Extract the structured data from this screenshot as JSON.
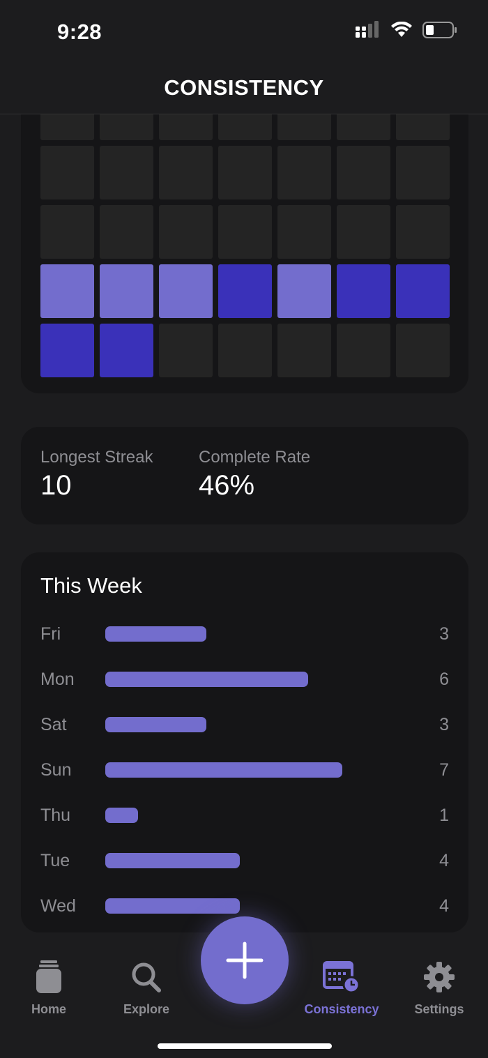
{
  "status_bar": {
    "time": "9:28"
  },
  "header": {
    "title": "CONSISTENCY"
  },
  "heatmap": {
    "colors": {
      "empty": "#242424",
      "light": "#736dcd",
      "dark": "#3a31b9"
    },
    "rows": [
      [
        "empty",
        "empty",
        "empty",
        "empty",
        "empty",
        "empty",
        "empty"
      ],
      [
        "empty",
        "empty",
        "empty",
        "empty",
        "empty",
        "empty",
        "empty"
      ],
      [
        "empty",
        "empty",
        "empty",
        "empty",
        "empty",
        "empty",
        "empty"
      ],
      [
        "light",
        "light",
        "light",
        "dark",
        "light",
        "dark",
        "dark"
      ],
      [
        "dark",
        "dark",
        "empty",
        "empty",
        "empty",
        "empty",
        "empty"
      ]
    ]
  },
  "stats": {
    "longest_streak_label": "Longest Streak",
    "longest_streak_value": "10",
    "complete_rate_label": "Complete Rate",
    "complete_rate_value": "46%"
  },
  "this_week": {
    "title": "This Week",
    "max_count": 7,
    "days": [
      {
        "day": "Fri",
        "count": 3
      },
      {
        "day": "Mon",
        "count": 6
      },
      {
        "day": "Sat",
        "count": 3
      },
      {
        "day": "Sun",
        "count": 7
      },
      {
        "day": "Thu",
        "count": 1
      },
      {
        "day": "Tue",
        "count": 4
      },
      {
        "day": "Wed",
        "count": 4
      }
    ]
  },
  "tab_bar": {
    "home": "Home",
    "explore": "Explore",
    "consistency": "Consistency",
    "settings": "Settings",
    "active_color": "#7b72d6",
    "icons": {
      "home": "jar-icon",
      "explore": "search-icon",
      "add": "plus-icon",
      "consistency": "calendar-clock-icon",
      "settings": "gear-icon"
    }
  }
}
